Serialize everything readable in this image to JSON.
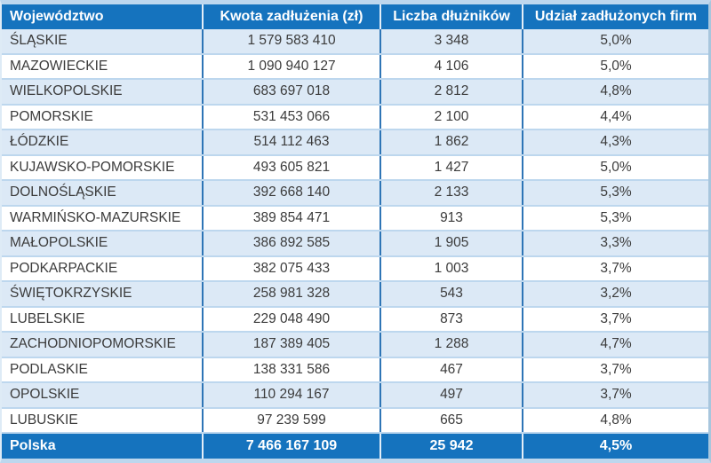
{
  "colors": {
    "header_bg": "#1573BE",
    "header_text": "#FFFFFF",
    "band_row_bg": "#DCE9F6",
    "plain_row_bg": "#FFFFFF",
    "row_separator": "#BDD7EE",
    "column_divider": "#2E75B6",
    "outer_frame": "#BDD7EE",
    "data_text": "#3B3B3B"
  },
  "table": {
    "columns": [
      {
        "label": "Województwo"
      },
      {
        "label": "Kwota zadłużenia (zł)"
      },
      {
        "label": "Liczba dłużników"
      },
      {
        "label": "Udział zadłużonych firm"
      }
    ],
    "rows": [
      {
        "region": "ŚLĄSKIE",
        "debt": "1 579 583 410",
        "debtors": "3 348",
        "share": "5,0%"
      },
      {
        "region": "MAZOWIECKIE",
        "debt": "1 090 940 127",
        "debtors": "4 106",
        "share": "5,0%"
      },
      {
        "region": "WIELKOPOLSKIE",
        "debt": "683 697 018",
        "debtors": "2 812",
        "share": "4,8%"
      },
      {
        "region": "POMORSKIE",
        "debt": "531 453 066",
        "debtors": "2 100",
        "share": "4,4%"
      },
      {
        "region": "ŁÓDZKIE",
        "debt": "514 112 463",
        "debtors": "1 862",
        "share": "4,3%"
      },
      {
        "region": "KUJAWSKO-POMORSKIE",
        "debt": "493 605 821",
        "debtors": "1 427",
        "share": "5,0%"
      },
      {
        "region": "DOLNOŚLĄSKIE",
        "debt": "392 668 140",
        "debtors": "2 133",
        "share": "5,3%"
      },
      {
        "region": "WARMIŃSKO-MAZURSKIE",
        "debt": "389 854 471",
        "debtors": "913",
        "share": "5,3%"
      },
      {
        "region": "MAŁOPOLSKIE",
        "debt": "386 892 585",
        "debtors": "1 905",
        "share": "3,3%"
      },
      {
        "region": "PODKARPACKIE",
        "debt": "382 075 433",
        "debtors": "1 003",
        "share": "3,7%"
      },
      {
        "region": "ŚWIĘTOKRZYSKIE",
        "debt": "258 981 328",
        "debtors": "543",
        "share": "3,2%"
      },
      {
        "region": "LUBELSKIE",
        "debt": "229 048 490",
        "debtors": "873",
        "share": "3,7%"
      },
      {
        "region": "ZACHODNIOPOMORSKIE",
        "debt": "187 389 405",
        "debtors": "1 288",
        "share": "4,7%"
      },
      {
        "region": "PODLASKIE",
        "debt": "138 331 586",
        "debtors": "467",
        "share": "3,7%"
      },
      {
        "region": "OPOLSKIE",
        "debt": "110 294 167",
        "debtors": "497",
        "share": "3,7%"
      },
      {
        "region": "LUBUSKIE",
        "debt": "97 239 599",
        "debtors": "665",
        "share": "4,8%"
      }
    ],
    "total": {
      "region": "Polska",
      "debt": "7 466 167 109",
      "debtors": "25 942",
      "share": "4,5%"
    }
  },
  "chart_data": {
    "type": "table",
    "columns": [
      "Województwo",
      "Kwota zadłużenia (zł)",
      "Liczba dłużników",
      "Udział zadłużonych firm"
    ],
    "rows": [
      [
        "ŚLĄSKIE",
        1579583410,
        3348,
        5.0
      ],
      [
        "MAZOWIECKIE",
        1090940127,
        4106,
        5.0
      ],
      [
        "WIELKOPOLSKIE",
        683697018,
        2812,
        4.8
      ],
      [
        "POMORSKIE",
        531453066,
        2100,
        4.4
      ],
      [
        "ŁÓDZKIE",
        514112463,
        1862,
        4.3
      ],
      [
        "KUJAWSKO-POMORSKIE",
        493605821,
        1427,
        5.0
      ],
      [
        "DOLNOŚLĄSKIE",
        392668140,
        2133,
        5.3
      ],
      [
        "WARMIŃSKO-MAZURSKIE",
        389854471,
        913,
        5.3
      ],
      [
        "MAŁOPOLSKIE",
        386892585,
        1905,
        3.3
      ],
      [
        "PODKARPACKIE",
        382075433,
        1003,
        3.7
      ],
      [
        "ŚWIĘTOKRZYSKIE",
        258981328,
        543,
        3.2
      ],
      [
        "LUBELSKIE",
        229048490,
        873,
        3.7
      ],
      [
        "ZACHODNIOPOMORSKIE",
        187389405,
        1288,
        4.7
      ],
      [
        "PODLASKIE",
        138331586,
        467,
        3.7
      ],
      [
        "OPOLSKIE",
        110294167,
        497,
        3.7
      ],
      [
        "LUBUSKIE",
        97239599,
        665,
        4.8
      ],
      [
        "Polska",
        7466167109,
        25942,
        4.5
      ]
    ],
    "share_unit": "%",
    "note": "totals row label Polska"
  }
}
